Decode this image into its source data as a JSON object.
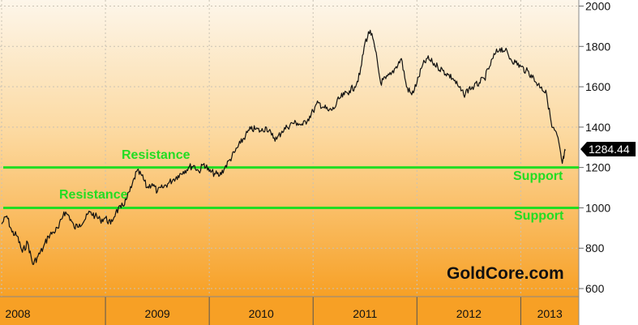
{
  "chart_data": {
    "type": "line",
    "title": "",
    "xlabel": "",
    "ylabel": "",
    "ylim": [
      560,
      2030
    ],
    "xlim": [
      2008.0,
      2013.45
    ],
    "y_ticks": [
      "600",
      "800",
      "1000",
      "1200",
      "1400",
      "1600",
      "1800",
      "2000"
    ],
    "x_ticks": [
      {
        "label": "2008",
        "x": 2008.0
      },
      {
        "label": "2009",
        "x": 2009.0
      },
      {
        "label": "2010",
        "x": 2010.0
      },
      {
        "label": "2011",
        "x": 2011.0
      },
      {
        "label": "2012",
        "x": 2012.0
      },
      {
        "label": "2013",
        "x": 2013.0
      }
    ],
    "grid": true,
    "series": [
      {
        "x": [
          2008.0,
          2008.05,
          2008.1,
          2008.15,
          2008.2,
          2008.25,
          2008.3,
          2008.35,
          2008.4,
          2008.45,
          2008.5,
          2008.55,
          2008.6,
          2008.65,
          2008.7,
          2008.75,
          2008.8,
          2008.85,
          2008.9,
          2008.95,
          2009.0,
          2009.05,
          2009.1,
          2009.15,
          2009.2,
          2009.25,
          2009.3,
          2009.35,
          2009.4,
          2009.45,
          2009.5,
          2009.55,
          2009.6,
          2009.65,
          2009.7,
          2009.75,
          2009.8,
          2009.85,
          2009.9,
          2009.95,
          2010.0,
          2010.05,
          2010.1,
          2010.15,
          2010.2,
          2010.25,
          2010.3,
          2010.35,
          2010.4,
          2010.45,
          2010.5,
          2010.55,
          2010.6,
          2010.65,
          2010.7,
          2010.75,
          2010.8,
          2010.85,
          2010.9,
          2010.95,
          2011.0,
          2011.05,
          2011.1,
          2011.15,
          2011.2,
          2011.25,
          2011.3,
          2011.35,
          2011.4,
          2011.45,
          2011.5,
          2011.55,
          2011.6,
          2011.65,
          2011.7,
          2011.75,
          2011.8,
          2011.85,
          2011.9,
          2011.95,
          2012.0,
          2012.05,
          2012.1,
          2012.15,
          2012.2,
          2012.25,
          2012.3,
          2012.35,
          2012.4,
          2012.45,
          2012.5,
          2012.55,
          2012.6,
          2012.65,
          2012.7,
          2012.75,
          2012.8,
          2012.85,
          2012.9,
          2012.95,
          2013.0,
          2013.05,
          2013.1,
          2013.15,
          2013.2,
          2013.25,
          2013.3,
          2013.35,
          2013.4,
          2013.43
        ],
        "values": [
          920,
          960,
          880,
          860,
          780,
          830,
          720,
          760,
          800,
          860,
          880,
          900,
          980,
          960,
          900,
          920,
          940,
          980,
          960,
          940,
          950,
          920,
          980,
          1000,
          1040,
          1100,
          1180,
          1160,
          1100,
          1120,
          1080,
          1100,
          1120,
          1140,
          1160,
          1180,
          1200,
          1210,
          1180,
          1220,
          1180,
          1170,
          1160,
          1200,
          1240,
          1280,
          1320,
          1360,
          1390,
          1390,
          1380,
          1400,
          1360,
          1340,
          1380,
          1400,
          1420,
          1420,
          1410,
          1440,
          1480,
          1520,
          1500,
          1480,
          1490,
          1540,
          1560,
          1580,
          1600,
          1660,
          1820,
          1880,
          1780,
          1620,
          1640,
          1660,
          1700,
          1740,
          1600,
          1560,
          1620,
          1700,
          1740,
          1720,
          1700,
          1680,
          1660,
          1640,
          1600,
          1560,
          1590,
          1600,
          1620,
          1640,
          1700,
          1760,
          1790,
          1780,
          1740,
          1720,
          1700,
          1680,
          1660,
          1620,
          1600,
          1560,
          1400,
          1360,
          1220,
          1284.44
        ]
      }
    ],
    "last_value": "1284.44",
    "reference_lines": [
      {
        "y": 1200,
        "color": "#22dd22"
      },
      {
        "y": 1000,
        "color": "#22dd22"
      }
    ],
    "annotations": [
      {
        "text": "Resistance",
        "color": "#22dd22"
      },
      {
        "text": "Resistance",
        "color": "#22dd22"
      },
      {
        "text": "Support",
        "color": "#22dd22"
      },
      {
        "text": "Support",
        "color": "#22dd22"
      }
    ],
    "brand": "GoldCore.com",
    "colors": {
      "bg_top": "#fdf6ea",
      "bg_bottom": "#f7a025",
      "line": "#111111",
      "reference": "#22dd22",
      "value_tag": "#000000"
    }
  }
}
